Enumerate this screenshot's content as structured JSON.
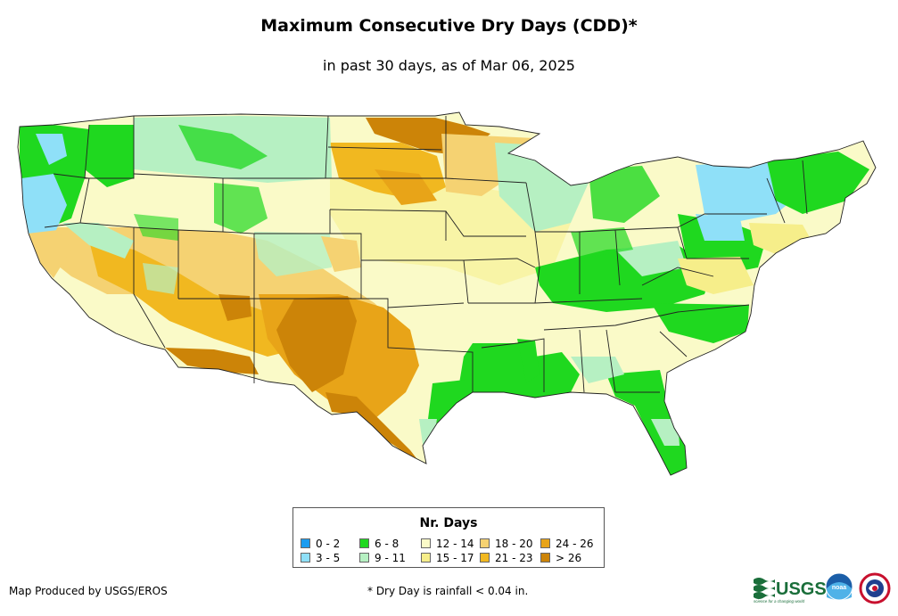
{
  "title": "Maximum Consecutive Dry Days (CDD)*",
  "subtitle": "in past 30 days, as of Mar 06, 2025",
  "legend": {
    "title": "Nr. Days",
    "items": [
      {
        "label": "0 - 2",
        "color": "#1a9cf0"
      },
      {
        "label": "3 - 5",
        "color": "#8fe0f8"
      },
      {
        "label": "6 - 8",
        "color": "#1fd81f"
      },
      {
        "label": "9 - 11",
        "color": "#b6f0c2"
      },
      {
        "label": "12 - 14",
        "color": "#fafac8"
      },
      {
        "label": "15 - 17",
        "color": "#f6ee8a"
      },
      {
        "label": "18 - 20",
        "color": "#f5d272"
      },
      {
        "label": "21 - 23",
        "color": "#f1b820"
      },
      {
        "label": "24 - 26",
        "color": "#e8a418"
      },
      {
        "label": "> 26",
        "color": "#cc8408"
      }
    ]
  },
  "credit": "Map Produced by USGS/EROS",
  "footnote": "* Dry Day is rainfall < 0.04 in.",
  "logos": {
    "usgs": "USGS",
    "usgs_tagline": "science for a changing world",
    "noaa": "noaa",
    "nws_icon": "nws-icon"
  }
}
